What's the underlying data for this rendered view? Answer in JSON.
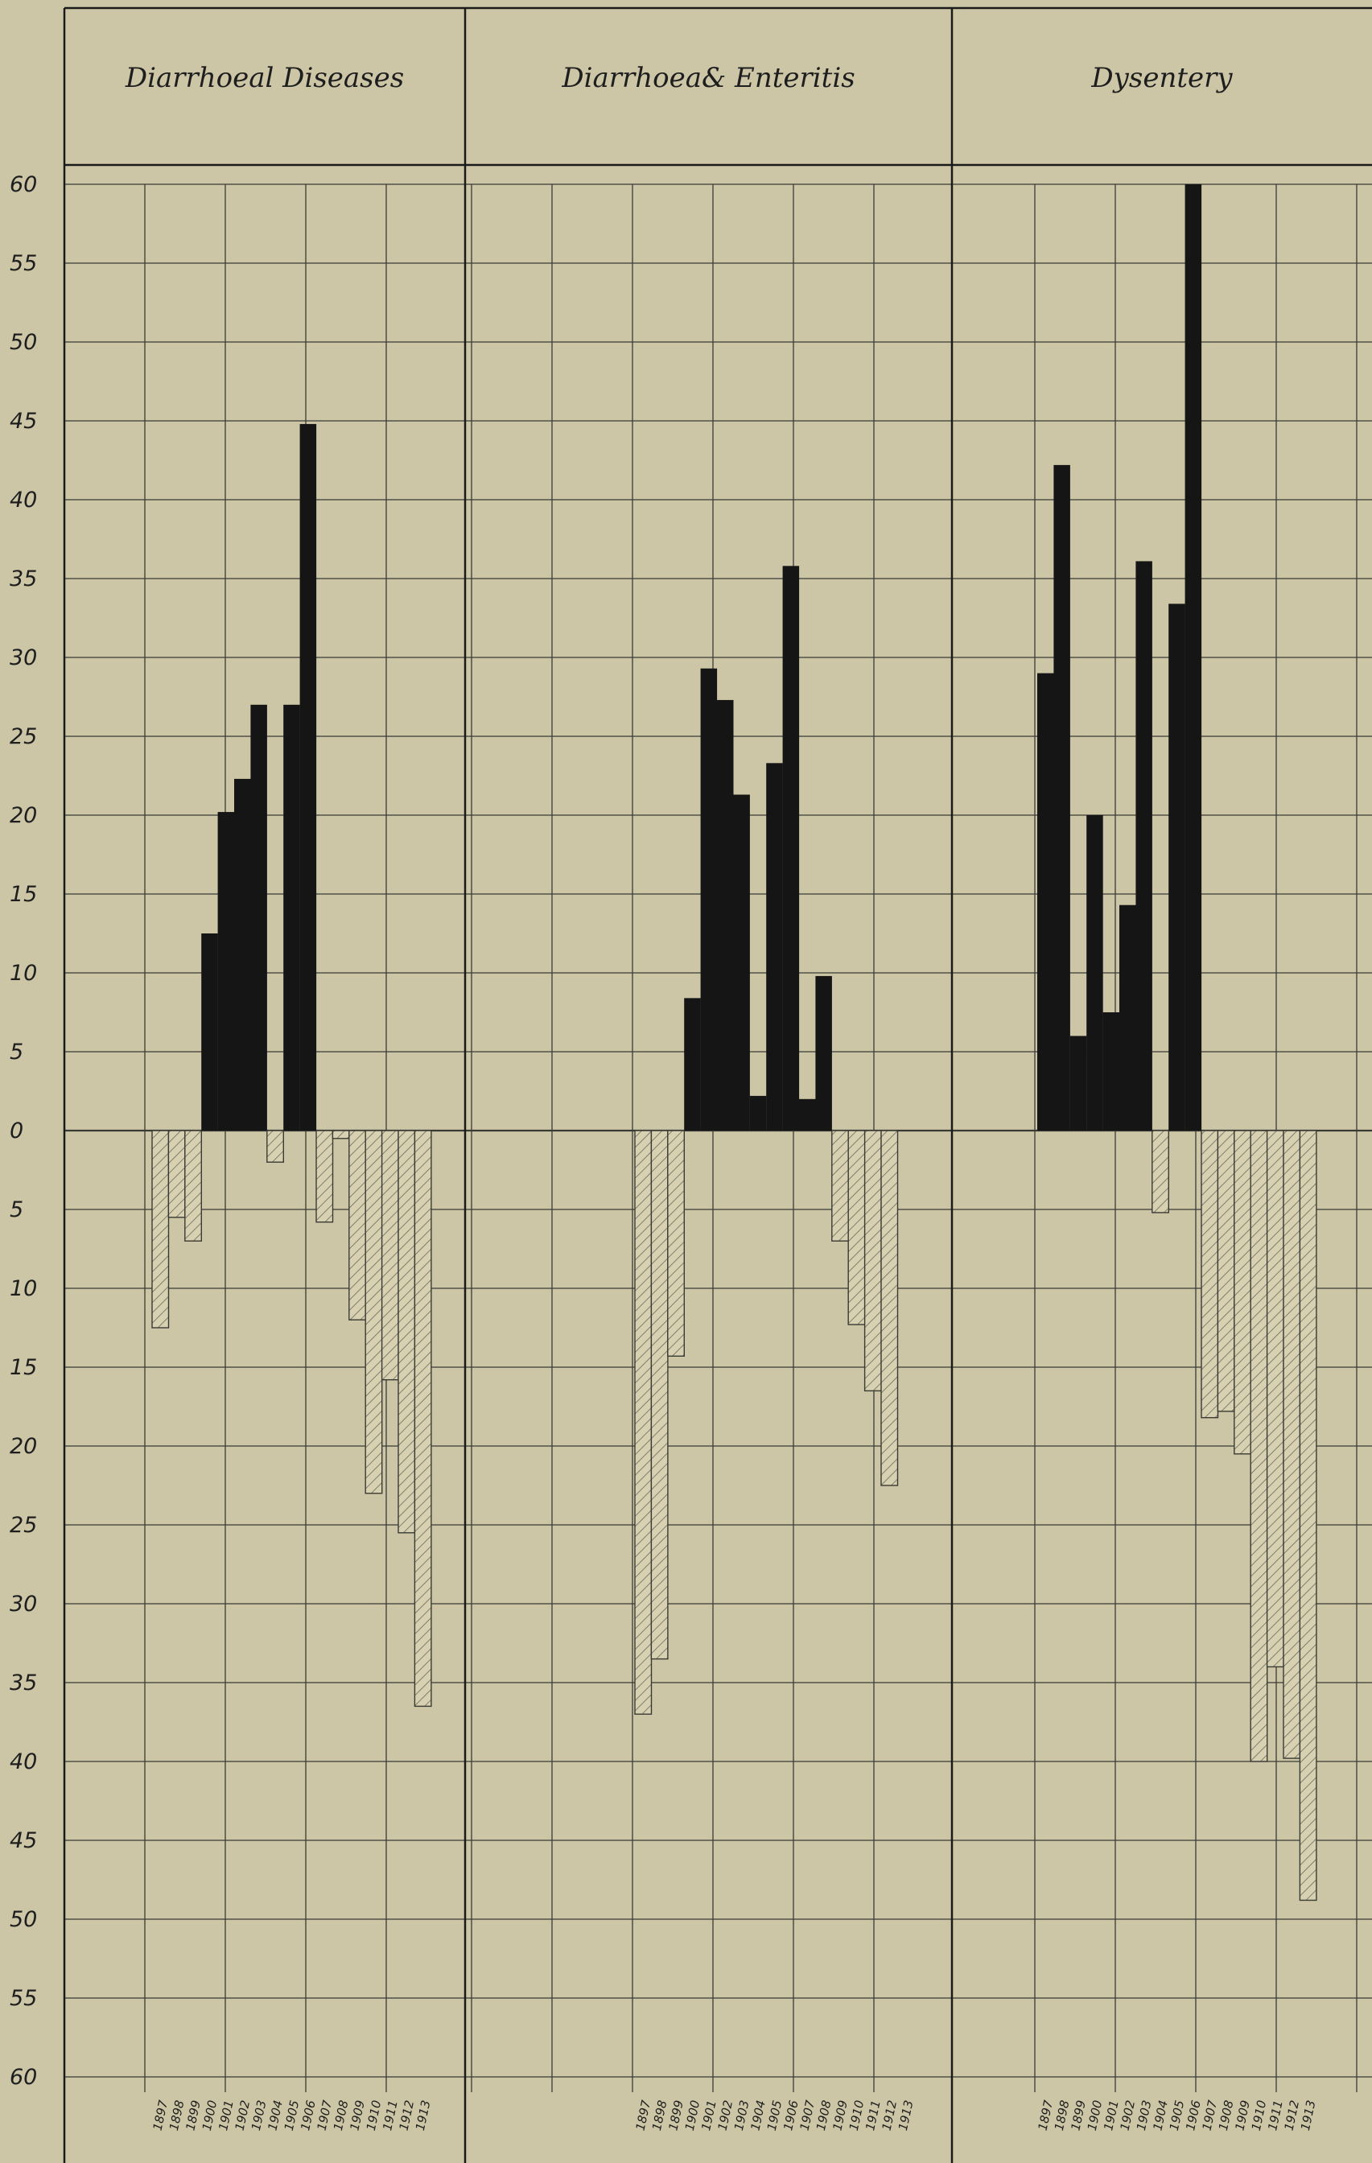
{
  "chart_data": {
    "type": "bar",
    "ylim": [
      -60,
      60
    ],
    "y_ticks": [
      60,
      55,
      50,
      45,
      40,
      35,
      30,
      25,
      20,
      15,
      10,
      5,
      0,
      5,
      10,
      15,
      20,
      25,
      30,
      35,
      40,
      45,
      50,
      55,
      60
    ],
    "grid": true,
    "legend": "none",
    "colors": {
      "positive": "#151515",
      "negative_fill": "#d7d1b2",
      "negative_hatch": "#6a6a5a",
      "grid": "#3a3a34",
      "background": "#ccc6a6"
    },
    "categories": [
      "1897",
      "1898",
      "1899",
      "1900",
      "1901",
      "1902",
      "1903",
      "1904",
      "1905",
      "1906",
      "1907",
      "1908",
      "1909",
      "1910",
      "1911",
      "1912",
      "1913"
    ],
    "tick_labels": {
      "diarrhoeal": [
        "1897",
        "1898",
        "1899",
        "1900",
        "1901",
        "1902",
        "1903",
        "1904",
        "1905",
        "1906",
        "1907",
        "1908",
        "1909",
        "1910",
        "1911",
        "1912",
        "1913"
      ],
      "enteritis": [
        "1897",
        "1898",
        "1899",
        "1900",
        "1901",
        "1902",
        "1903",
        "1904",
        "1905",
        "1906",
        "1907",
        "1908",
        "1909",
        "1910",
        "1911",
        "1912",
        "1913"
      ],
      "dysentery": [
        "1897",
        "1898",
        "1899",
        "1900",
        "1901",
        "1902",
        "1903",
        "1904",
        "1905",
        "1906",
        "1907",
        "1908",
        "1909",
        "1910",
        "1911",
        "1912",
        "1913"
      ]
    },
    "panels": [
      {
        "key": "diarrhoeal",
        "title": "Diarrhoeal Diseases",
        "values": [
          -12.5,
          -5.5,
          -7,
          12.5,
          20.2,
          22.3,
          27,
          -2,
          27,
          44.8,
          -5.8,
          -0.5,
          -12,
          -23,
          -15.8,
          -25.5,
          -36.5
        ]
      },
      {
        "key": "enteritis",
        "title": "Diarrhoea& Enteritis",
        "values": [
          -37,
          -33.5,
          -14.3,
          8.4,
          29.3,
          27.3,
          21.3,
          2.2,
          23.3,
          35.8,
          2,
          9.8,
          -7,
          -12.3,
          -16.5,
          -22.5,
          0
        ]
      },
      {
        "key": "dysentery",
        "title": "Dysentery",
        "values": [
          29,
          42.2,
          6,
          20,
          7.5,
          14.3,
          36.1,
          -5.2,
          33.4,
          60,
          -18.2,
          -17.8,
          -20.5,
          -40,
          -34,
          -39.8,
          -48.8
        ]
      }
    ]
  }
}
